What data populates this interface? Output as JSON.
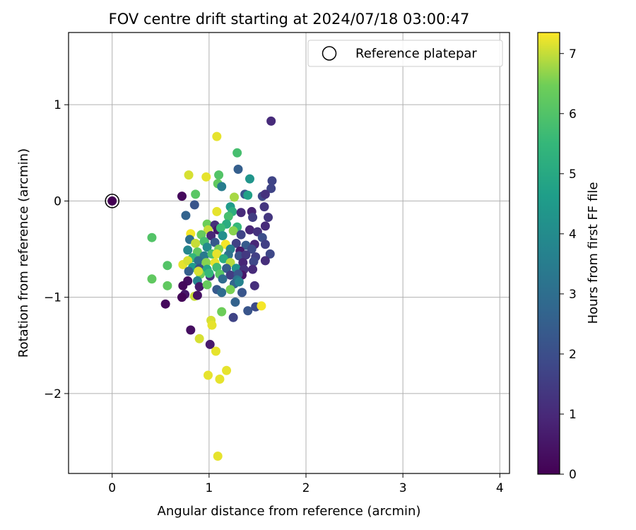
{
  "chart_data": {
    "type": "scatter",
    "title": "FOV centre drift starting at 2024/07/18 03:00:47",
    "xlabel": "Angular distance from reference (arcmin)",
    "ylabel": "Rotation from reference (arcmin)",
    "xlim": [
      -0.45,
      4.1
    ],
    "ylim": [
      -2.83,
      1.75
    ],
    "x_ticks": [
      0,
      1,
      2,
      3,
      4
    ],
    "y_ticks": [
      -2,
      -1,
      0,
      1
    ],
    "grid": true,
    "legend": {
      "placement": "top-right",
      "entries": [
        "Reference platepar"
      ]
    },
    "colorbar": {
      "label": "Hours from first FF file",
      "range": [
        0,
        7.35
      ],
      "ticks": [
        0,
        1,
        2,
        3,
        4,
        5,
        6,
        7
      ],
      "colormap": "viridis"
    },
    "reference_point": {
      "x": 0,
      "y": 0,
      "hours": 0
    },
    "series": [
      {
        "points": [
          [
            1.64,
            0.83,
            1.0
          ],
          [
            1.08,
            0.67,
            7.2
          ],
          [
            1.29,
            0.5,
            5.8
          ],
          [
            0.79,
            0.27,
            7.1
          ],
          [
            0.97,
            0.25,
            7.2
          ],
          [
            1.1,
            0.27,
            6.0
          ],
          [
            1.3,
            0.33,
            2.5
          ],
          [
            1.42,
            0.23,
            4.3
          ],
          [
            1.65,
            0.21,
            1.7
          ],
          [
            1.64,
            0.13,
            1.7
          ],
          [
            1.09,
            0.18,
            6.2
          ],
          [
            1.13,
            0.15,
            3.5
          ],
          [
            0.86,
            0.07,
            6.1
          ],
          [
            0.72,
            0.05,
            0.2
          ],
          [
            1.26,
            0.04,
            6.8
          ],
          [
            1.37,
            0.07,
            2.2
          ],
          [
            1.4,
            0.06,
            4.7
          ],
          [
            1.55,
            0.05,
            1.8
          ],
          [
            1.58,
            0.07,
            1.2
          ],
          [
            0.85,
            -0.04,
            2.2
          ],
          [
            1.22,
            -0.06,
            4.5
          ],
          [
            1.57,
            -0.06,
            1.3
          ],
          [
            1.08,
            -0.11,
            7.2
          ],
          [
            1.24,
            -0.11,
            5.2
          ],
          [
            1.33,
            -0.12,
            1.0
          ],
          [
            1.44,
            -0.11,
            0.8
          ],
          [
            0.76,
            -0.15,
            2.6
          ],
          [
            1.2,
            -0.16,
            5.8
          ],
          [
            1.45,
            -0.17,
            1.5
          ],
          [
            1.61,
            -0.17,
            1.3
          ],
          [
            0.98,
            -0.24,
            6.4
          ],
          [
            1.06,
            -0.25,
            1.1
          ],
          [
            1.18,
            -0.24,
            5.1
          ],
          [
            1.29,
            -0.27,
            5.5
          ],
          [
            1.42,
            -0.3,
            0.9
          ],
          [
            1.58,
            -0.26,
            1.0
          ],
          [
            0.99,
            -0.3,
            7.0
          ],
          [
            1.09,
            -0.3,
            0.5
          ],
          [
            1.12,
            -0.28,
            5.6
          ],
          [
            0.92,
            -0.35,
            6.3
          ],
          [
            1.02,
            -0.36,
            0.9
          ],
          [
            1.14,
            -0.36,
            4.1
          ],
          [
            1.25,
            -0.31,
            6.6
          ],
          [
            1.33,
            -0.35,
            1.7
          ],
          [
            1.5,
            -0.32,
            1.2
          ],
          [
            1.55,
            -0.38,
            2.0
          ],
          [
            0.41,
            -0.38,
            6.0
          ],
          [
            0.81,
            -0.34,
            7.3
          ],
          [
            0.8,
            -0.4,
            3.0
          ],
          [
            0.95,
            -0.42,
            5.8
          ],
          [
            1.06,
            -0.43,
            2.3
          ],
          [
            1.17,
            -0.45,
            7.3
          ],
          [
            1.28,
            -0.44,
            1.6
          ],
          [
            1.38,
            -0.46,
            2.4
          ],
          [
            1.47,
            -0.45,
            0.9
          ],
          [
            1.58,
            -0.45,
            1.6
          ],
          [
            0.86,
            -0.44,
            7.0
          ],
          [
            0.98,
            -0.48,
            4.0
          ],
          [
            1.1,
            -0.5,
            6.5
          ],
          [
            1.22,
            -0.5,
            3.6
          ],
          [
            1.32,
            -0.52,
            0.6
          ],
          [
            1.44,
            -0.5,
            1.9
          ],
          [
            1.63,
            -0.55,
            1.8
          ],
          [
            0.78,
            -0.51,
            3.8
          ],
          [
            0.88,
            -0.53,
            6.2
          ],
          [
            0.95,
            -0.57,
            3.4
          ],
          [
            1.03,
            -0.55,
            5.9
          ],
          [
            1.08,
            -0.55,
            7.2
          ],
          [
            1.2,
            -0.56,
            3.1
          ],
          [
            1.31,
            -0.57,
            2.1
          ],
          [
            1.38,
            -0.56,
            1.4
          ],
          [
            1.48,
            -0.58,
            1.6
          ],
          [
            1.58,
            -0.62,
            1.1
          ],
          [
            0.83,
            -0.59,
            5.4
          ],
          [
            0.89,
            -0.62,
            3.0
          ],
          [
            0.97,
            -0.64,
            6.6
          ],
          [
            1.06,
            -0.64,
            7.2
          ],
          [
            1.15,
            -0.6,
            5.1
          ],
          [
            1.22,
            -0.64,
            6.9
          ],
          [
            1.35,
            -0.64,
            0.9
          ],
          [
            1.46,
            -0.63,
            1.8
          ],
          [
            0.73,
            -0.66,
            7.2
          ],
          [
            0.78,
            -0.62,
            7.1
          ],
          [
            0.83,
            -0.69,
            4.6
          ],
          [
            0.9,
            -0.7,
            2.1
          ],
          [
            0.98,
            -0.71,
            4.9
          ],
          [
            1.08,
            -0.69,
            5.7
          ],
          [
            1.18,
            -0.7,
            2.4
          ],
          [
            1.28,
            -0.7,
            4.2
          ],
          [
            1.36,
            -0.71,
            1.2
          ],
          [
            1.45,
            -0.71,
            1.0
          ],
          [
            0.57,
            -0.67,
            6.0
          ],
          [
            0.79,
            -0.73,
            2.5
          ],
          [
            0.91,
            -0.76,
            6.4
          ],
          [
            1.01,
            -0.78,
            1.2
          ],
          [
            1.11,
            -0.76,
            6.1
          ],
          [
            1.22,
            -0.77,
            1.5
          ],
          [
            1.34,
            -0.77,
            0.5
          ],
          [
            0.89,
            -0.73,
            7.1
          ],
          [
            1.0,
            -0.75,
            5.5
          ],
          [
            1.3,
            -0.76,
            2.2
          ],
          [
            0.41,
            -0.81,
            6.2
          ],
          [
            0.78,
            -0.83,
            0.3
          ],
          [
            0.88,
            -0.83,
            3.7
          ],
          [
            1.14,
            -0.81,
            2.9
          ],
          [
            1.29,
            -0.82,
            3.2
          ],
          [
            0.57,
            -0.88,
            6.2
          ],
          [
            0.73,
            -0.88,
            0.2
          ],
          [
            0.9,
            -0.89,
            0.6
          ],
          [
            0.98,
            -0.87,
            6.3
          ],
          [
            1.26,
            -0.86,
            2.7
          ],
          [
            1.31,
            -0.84,
            3.7
          ],
          [
            1.47,
            -0.88,
            1.1
          ],
          [
            1.08,
            -0.92,
            2.3
          ],
          [
            1.13,
            -0.95,
            2.9
          ],
          [
            1.22,
            -0.92,
            6.5
          ],
          [
            1.34,
            -0.95,
            2.2
          ],
          [
            0.75,
            -0.97,
            0.5
          ],
          [
            0.72,
            -1.0,
            0.1
          ],
          [
            0.85,
            -0.99,
            7.0
          ],
          [
            0.88,
            -0.98,
            0.4
          ],
          [
            1.27,
            -1.05,
            2.6
          ],
          [
            0.55,
            -1.07,
            0.2
          ],
          [
            1.4,
            -1.14,
            2.2
          ],
          [
            1.48,
            -1.1,
            1.9
          ],
          [
            1.54,
            -1.09,
            7.3
          ],
          [
            1.13,
            -1.15,
            6.4
          ],
          [
            1.25,
            -1.21,
            1.7
          ],
          [
            1.02,
            -1.24,
            7.1
          ],
          [
            1.03,
            -1.29,
            7.2
          ],
          [
            0.81,
            -1.34,
            0.3
          ],
          [
            0.9,
            -1.43,
            7.1
          ],
          [
            1.01,
            -1.49,
            0.6
          ],
          [
            1.07,
            -1.56,
            7.2
          ],
          [
            0.99,
            -1.81,
            7.2
          ],
          [
            1.18,
            -1.76,
            7.2
          ],
          [
            1.11,
            -1.85,
            7.2
          ],
          [
            1.09,
            -2.65,
            7.2
          ]
        ]
      }
    ]
  }
}
